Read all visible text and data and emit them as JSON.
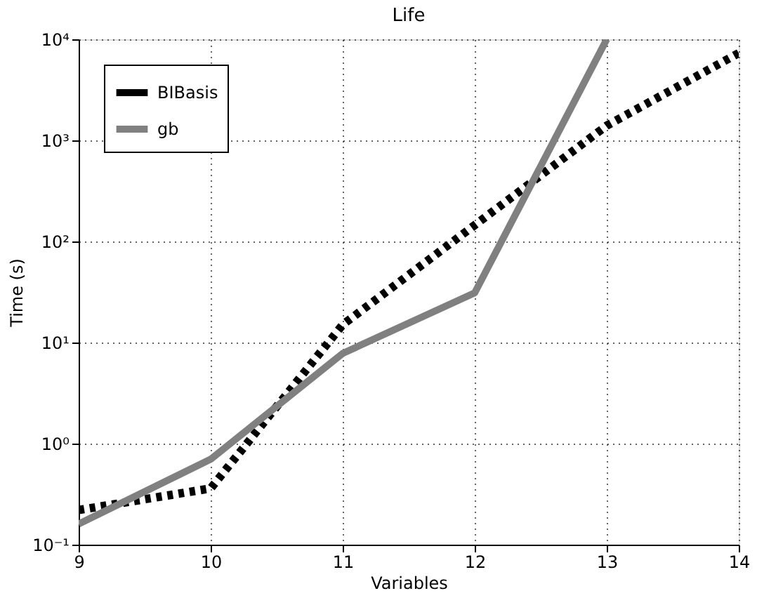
{
  "chart_data": {
    "type": "line",
    "title": "Life",
    "xlabel": "Variables",
    "ylabel": "Time (s)",
    "x": [
      9,
      10,
      11,
      12,
      13,
      14
    ],
    "series": [
      {
        "name": "BIBasis",
        "color": "#000000",
        "line_style": "dotted",
        "values": [
          0.22,
          0.36,
          15,
          145,
          1400,
          7300
        ]
      },
      {
        "name": "gb",
        "color": "#808080",
        "line_style": "solid",
        "values": [
          0.16,
          0.7,
          7.8,
          31,
          10000,
          null
        ]
      }
    ],
    "log": "y",
    "xlim": [
      9,
      14
    ],
    "xticks": [
      9,
      10,
      11,
      12,
      13,
      14
    ],
    "ylim": [
      0.1,
      10000
    ],
    "yticks": [
      {
        "value": 0.1,
        "label": "10⁻¹"
      },
      {
        "value": 1,
        "label": "10⁰"
      },
      {
        "value": 10,
        "label": "10¹"
      },
      {
        "value": 100,
        "label": "10²"
      },
      {
        "value": 1000,
        "label": "10³"
      },
      {
        "value": 10000,
        "label": "10⁴"
      }
    ],
    "grid": true,
    "legend": "top left",
    "marker": "none"
  }
}
